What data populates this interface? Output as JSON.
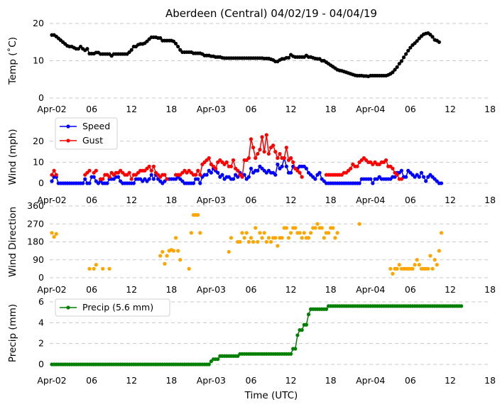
{
  "chart_data": {
    "title": "Aberdeen (Central) 04/02/19 - 04/04/19",
    "xlabel": "Time (UTC)",
    "x_start_hour": 0,
    "x_end_hour": 66,
    "x_ticks": [
      {
        "hour": 0,
        "label": "Apr-02"
      },
      {
        "hour": 6,
        "label": "06"
      },
      {
        "hour": 12,
        "label": "12"
      },
      {
        "hour": 18,
        "label": "18"
      },
      {
        "hour": 24,
        "label": "Apr-03"
      },
      {
        "hour": 30,
        "label": "06"
      },
      {
        "hour": 36,
        "label": "12"
      },
      {
        "hour": 42,
        "label": "18"
      },
      {
        "hour": 48,
        "label": "Apr-04"
      },
      {
        "hour": 54,
        "label": "06"
      },
      {
        "hour": 60,
        "label": "12"
      },
      {
        "hour": 66,
        "label": "18"
      }
    ],
    "panels": [
      {
        "id": "temp",
        "type": "line",
        "ylabel": "Temp (˚C)",
        "ylim": [
          0,
          20
        ],
        "yticks": [
          0,
          10,
          20
        ],
        "series": [
          {
            "name": "Temperature",
            "color": "#000000",
            "interval_min": 20,
            "values": [
              16.9,
              16.9,
              16.5,
              16,
              15.5,
              15,
              14.5,
              14,
              13.8,
              13.8,
              13.5,
              13.2,
              13.2,
              13.8,
              13.2,
              12.8,
              13.2,
              11.9,
              11.9,
              11.9,
              12.2,
              12.2,
              11.8,
              11.8,
              11.8,
              11.8,
              11.8,
              11.3,
              11.8,
              11.8,
              11.8,
              11.8,
              11.8,
              11.8,
              11.8,
              12.3,
              12.9,
              13.8,
              13.8,
              14.3,
              14.5,
              14.5,
              14.7,
              15.2,
              15.8,
              16.3,
              16.3,
              16.3,
              16.1,
              16.1,
              15.4,
              15.4,
              15.4,
              15.4,
              15.4,
              15.2,
              14.6,
              13.8,
              12.9,
              12.3,
              12.3,
              12.3,
              12.3,
              12.3,
              12,
              12,
              12,
              12,
              11.8,
              11.4,
              11.4,
              11.4,
              11.2,
              11.2,
              11,
              11,
              11,
              10.8,
              10.7,
              10.7,
              10.7,
              10.7,
              10.7,
              10.7,
              10.7,
              10.7,
              10.7,
              10.7,
              10.7,
              10.7,
              10.7,
              10.7,
              10.7,
              10.7,
              10.7,
              10.7,
              10.6,
              10.6,
              10.6,
              10.4,
              10.2,
              9.8,
              9.8,
              10.2,
              10.5,
              10.5,
              10.8,
              10.8,
              11.6,
              11.2,
              11,
              11,
              11,
              11,
              11,
              11.4,
              11,
              11,
              10.8,
              10.6,
              10.5,
              10.5,
              10,
              10,
              9.6,
              9.2,
              8.8,
              8.4,
              8,
              7.6,
              7.4,
              7.3,
              7.1,
              6.9,
              6.7,
              6.5,
              6.3,
              6.1,
              6,
              6,
              6,
              5.9,
              5.9,
              5.8,
              6,
              6,
              6,
              6,
              6,
              6,
              6,
              6,
              6.2,
              6.5,
              6.9,
              7.6,
              8.3,
              9.2,
              9.9,
              10.9,
              11.8,
              12.7,
              13.5,
              14.2,
              14.7,
              15.3,
              16,
              16.6,
              17.1,
              17.3,
              17.4,
              17,
              16.4,
              15.6,
              15.4,
              15
            ]
          }
        ]
      },
      {
        "id": "wind",
        "type": "line",
        "ylabel": "Wind (mph)",
        "ylim": [
          0,
          25
        ],
        "yticks": [
          0,
          10,
          20
        ],
        "legend": [
          "Speed",
          "Gust"
        ],
        "series": [
          {
            "name": "Speed",
            "color": "#0000ff",
            "interval_min": 20,
            "values": [
              1,
              3,
              3,
              0,
              0,
              0,
              0,
              0,
              0,
              0,
              0,
              0,
              0,
              0,
              0,
              2,
              0,
              0,
              3,
              3,
              1,
              0,
              1,
              0,
              0,
              0,
              2,
              2,
              2,
              3,
              3,
              1,
              0,
              0,
              0,
              0,
              0,
              0,
              2,
              2,
              2,
              1,
              2,
              1,
              2,
              4,
              2,
              4,
              2,
              1,
              0,
              1,
              2,
              2,
              2,
              2,
              2,
              3,
              2,
              1,
              0,
              0,
              0,
              0,
              0,
              2,
              2,
              0,
              3,
              4,
              4,
              6,
              5,
              7,
              6,
              5,
              3,
              4,
              2,
              3,
              3,
              2,
              2,
              4,
              3,
              5,
              4,
              4,
              2,
              3,
              7,
              5,
              6,
              6,
              8,
              7,
              6,
              5,
              6,
              5,
              5,
              4,
              9,
              7,
              8,
              12,
              8,
              5,
              5,
              8,
              7,
              7,
              8,
              8,
              8,
              7,
              5,
              4,
              3,
              2,
              4,
              5,
              2,
              1,
              0,
              0,
              0,
              0,
              0,
              0,
              0,
              0,
              0,
              0,
              0,
              0,
              0,
              0,
              0,
              0,
              2,
              2,
              2,
              2,
              2,
              0,
              2,
              2,
              3,
              2,
              2,
              2,
              2,
              2,
              3,
              3,
              5,
              5,
              6,
              3,
              3,
              6,
              5,
              4,
              3,
              4,
              3,
              5,
              3,
              1,
              3,
              4,
              3,
              2,
              1,
              0,
              0
            ]
          },
          {
            "name": "Gust",
            "color": "#ff0000",
            "interval_min": 20,
            "values": [
              4,
              6,
              4,
              null,
              null,
              null,
              null,
              null,
              null,
              null,
              null,
              null,
              null,
              null,
              null,
              4,
              5,
              6,
              null,
              5,
              6,
              null,
              2,
              2,
              4,
              4,
              3,
              5,
              4,
              5,
              5,
              6,
              5,
              4,
              4,
              5,
              2,
              4,
              4,
              5,
              6,
              6,
              6,
              7,
              8,
              6,
              8,
              5,
              4,
              3,
              4,
              4,
              2,
              null,
              null,
              null,
              4,
              4,
              4,
              5,
              6,
              5,
              6,
              5,
              4,
              4,
              6,
              4,
              9,
              10,
              11,
              12,
              9,
              8,
              7,
              10,
              11,
              10,
              9,
              10,
              8,
              8,
              11,
              7,
              6,
              4,
              3,
              11,
              11,
              12,
              21,
              17,
              12,
              14,
              16,
              22,
              15,
              23,
              14,
              17,
              18,
              15,
              12,
              14,
              12,
              12,
              17,
              11,
              12,
              10,
              7,
              6,
              5,
              3,
              null,
              null,
              null,
              null,
              null,
              null,
              null,
              null,
              null,
              null,
              4,
              4,
              4,
              4,
              4,
              4,
              4,
              4,
              5,
              5,
              6,
              7,
              9,
              8,
              8,
              10,
              11,
              12,
              11,
              10,
              10,
              9,
              10,
              9,
              9,
              10,
              10,
              11,
              8,
              8,
              7,
              5,
              4,
              2,
              2,
              null,
              null,
              null,
              null,
              null
            ]
          }
        ]
      },
      {
        "id": "direction",
        "type": "scatter",
        "ylabel": "Wind Direction",
        "ylim": [
          0,
          360
        ],
        "yticks": [
          0,
          90,
          180,
          270,
          360
        ],
        "series": [
          {
            "name": "Direction",
            "color": "#ffa500",
            "interval_min": 20,
            "values": [
              225,
              205,
              220,
              null,
              null,
              null,
              null,
              null,
              null,
              null,
              null,
              null,
              null,
              null,
              null,
              null,
              null,
              45,
              null,
              45,
              65,
              null,
              null,
              45,
              null,
              null,
              45,
              null,
              null,
              null,
              null,
              null,
              null,
              null,
              null,
              null,
              null,
              null,
              null,
              null,
              null,
              null,
              null,
              null,
              null,
              null,
              null,
              null,
              null,
              110,
              130,
              70,
              110,
              135,
              140,
              135,
              200,
              135,
              90,
              null,
              null,
              null,
              45,
              225,
              315,
              315,
              315,
              225,
              null,
              null,
              null,
              null,
              null,
              null,
              null,
              null,
              null,
              null,
              null,
              null,
              130,
              200,
              null,
              null,
              180,
              180,
              225,
              200,
              225,
              180,
              200,
              180,
              250,
              180,
              225,
              200,
              225,
              180,
              200,
              180,
              200,
              200,
              160,
              200,
              200,
              250,
              250,
              200,
              225,
              250,
              250,
              225,
              225,
              200,
              225,
              200,
              200,
              225,
              250,
              250,
              270,
              250,
              250,
              200,
              225,
              225,
              250,
              250,
              200,
              225,
              null,
              null,
              null,
              null,
              null,
              null,
              null,
              null,
              null,
              270,
              null,
              null,
              null,
              null,
              null,
              null,
              null,
              null,
              null,
              null,
              null,
              null,
              null,
              45,
              20,
              45,
              45,
              65,
              45,
              45,
              45,
              45,
              45,
              45,
              65,
              90,
              65,
              45,
              45,
              45,
              45,
              110,
              45,
              90,
              65,
              135,
              225
            ]
          }
        ]
      },
      {
        "id": "precip",
        "type": "line",
        "ylabel": "Precip (mm)",
        "ylim": [
          0,
          6
        ],
        "yticks": [
          0,
          2,
          4,
          6
        ],
        "legend": [
          "Precip (5.6 mm)"
        ],
        "series": [
          {
            "name": "Precip (5.6 mm)",
            "color": "#008000",
            "interval_min": 20,
            "values": [
              0,
              0,
              0,
              0,
              0,
              0,
              0,
              0,
              0,
              0,
              0,
              0,
              0,
              0,
              0,
              0,
              0,
              0,
              0,
              0,
              0,
              0,
              0,
              0,
              0,
              0,
              0,
              0,
              0,
              0,
              0,
              0,
              0,
              0,
              0,
              0,
              0,
              0,
              0,
              0,
              0,
              0,
              0,
              0,
              0,
              0,
              0,
              0,
              0,
              0,
              0,
              0,
              0,
              0,
              0,
              0,
              0,
              0,
              0,
              0,
              0,
              0,
              0,
              0,
              0,
              0,
              0,
              0,
              0,
              0,
              0,
              0,
              0.3,
              0.5,
              0.5,
              0.5,
              0.8,
              0.8,
              0.8,
              0.8,
              0.8,
              0.8,
              0.8,
              0.8,
              0.8,
              1.0,
              1.0,
              1.0,
              1.0,
              1.0,
              1.0,
              1.0,
              1.0,
              1.0,
              1.0,
              1.0,
              1.0,
              1.0,
              1.0,
              1.0,
              1.0,
              1.0,
              1.0,
              1.0,
              1.0,
              1.0,
              1.0,
              1.0,
              1.0,
              1.5,
              1.5,
              2.8,
              3.3,
              3.3,
              3.8,
              3.8,
              4.8,
              5.3,
              5.3,
              5.3,
              5.3,
              5.3,
              5.3,
              5.3,
              5.3,
              5.6,
              5.6,
              5.6,
              5.6,
              5.6,
              5.6,
              5.6,
              5.6,
              5.6,
              5.6,
              5.6,
              5.6,
              5.6,
              5.6,
              5.6,
              5.6,
              5.6,
              5.6,
              5.6,
              5.6,
              5.6,
              5.6,
              5.6,
              5.6,
              5.6,
              5.6,
              5.6,
              5.6,
              5.6,
              5.6,
              5.6,
              5.6,
              5.6,
              5.6,
              5.6,
              5.6,
              5.6,
              5.6,
              5.6,
              5.6,
              5.6,
              5.6,
              5.6,
              5.6,
              5.6,
              5.6,
              5.6,
              5.6,
              5.6,
              5.6,
              5.6,
              5.6,
              5.6,
              5.6,
              5.6,
              5.6,
              5.6,
              5.6,
              5.6,
              5.6,
              5.6
            ]
          }
        ]
      }
    ]
  }
}
